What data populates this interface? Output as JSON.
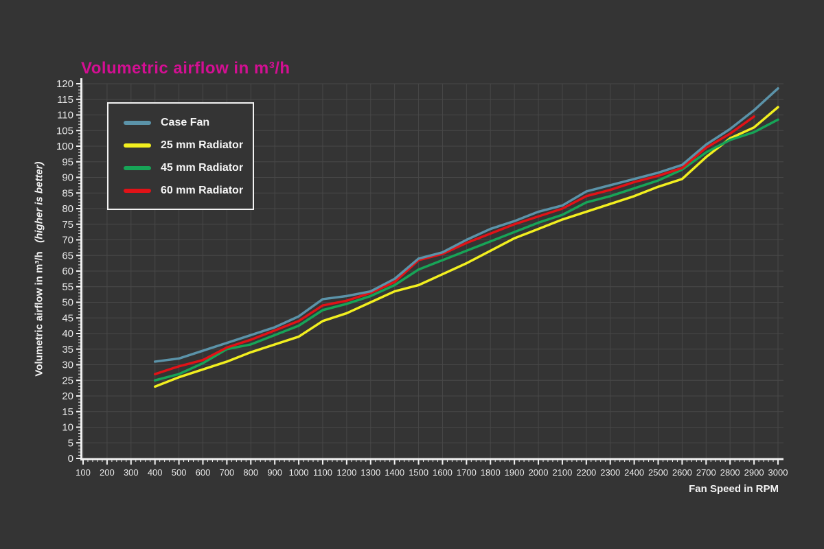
{
  "page": {
    "background_color": "#343434",
    "grid_color": "#484848",
    "axis_color": "#f0f0f0",
    "tick_label_color": "#e9e9e9"
  },
  "title": {
    "text": "Volumetric airflow in m³/h",
    "color": "#d40f93"
  },
  "x_axis_title": "Fan Speed in RPM",
  "y_axis_title": {
    "main": "Volumetric airflow in m³/h",
    "note": "(higher is better)"
  },
  "legend": {
    "items": [
      "Case Fan",
      "25 mm Radiator",
      "45 mm Radiator",
      "60 mm Radiator"
    ]
  },
  "chart_data": {
    "type": "line",
    "title": "Volumetric airflow in m³/h",
    "xlabel": "Fan Speed in RPM",
    "ylabel": "Volumetric airflow in m³/h (higher is better)",
    "grid": true,
    "legend_position": "top-left",
    "xlim": [
      100,
      3000
    ],
    "x_tick_step": 100,
    "x_minor_tick_step": 20,
    "ylim": [
      0,
      120
    ],
    "y_tick_step": 5,
    "y_minor_tick_step": 1,
    "x": [
      400,
      500,
      600,
      700,
      800,
      900,
      1000,
      1100,
      1200,
      1300,
      1400,
      1500,
      1600,
      1700,
      1800,
      1900,
      2000,
      2100,
      2200,
      2300,
      2400,
      2500,
      2600,
      2700,
      2800,
      2900,
      3000
    ],
    "series": [
      {
        "name": "Case Fan",
        "color": "#5b93a9",
        "values": [
          31,
          32,
          34.5,
          37,
          39.5,
          42,
          45.5,
          51,
          52,
          53.5,
          57.5,
          64,
          66,
          70,
          73.5,
          76,
          79,
          81,
          85.5,
          87.5,
          89.5,
          91.5,
          94,
          100.5,
          105.5,
          111.5,
          118.5
        ]
      },
      {
        "name": "25 mm Radiator",
        "color": "#f2ef1f",
        "values": [
          23,
          26,
          28.5,
          31,
          34,
          36.5,
          39,
          44,
          46.5,
          50,
          53.5,
          55.5,
          59,
          62.5,
          66.5,
          70.5,
          73.5,
          76.5,
          79,
          81.5,
          84,
          87,
          89.5,
          96.5,
          102.5,
          106,
          112.5
        ]
      },
      {
        "name": "45 mm Radiator",
        "color": "#17a457",
        "values": [
          25,
          27,
          30.5,
          35,
          36.5,
          39.5,
          42.5,
          47.5,
          49.5,
          52,
          55.5,
          60.5,
          63.5,
          66.5,
          69.5,
          72.5,
          75.5,
          78,
          82,
          84,
          86.5,
          89,
          92.5,
          98,
          102,
          104.5,
          108.5
        ]
      },
      {
        "name": "60 mm Radiator",
        "color": "#e11217",
        "values": [
          27,
          29.5,
          31.5,
          35.5,
          38,
          41,
          44,
          49,
          50.5,
          53,
          56.5,
          63.5,
          65.5,
          69,
          72,
          75,
          77.5,
          80,
          84,
          86,
          88.5,
          90.5,
          93,
          99.5,
          104,
          109.5,
          null
        ]
      }
    ]
  }
}
